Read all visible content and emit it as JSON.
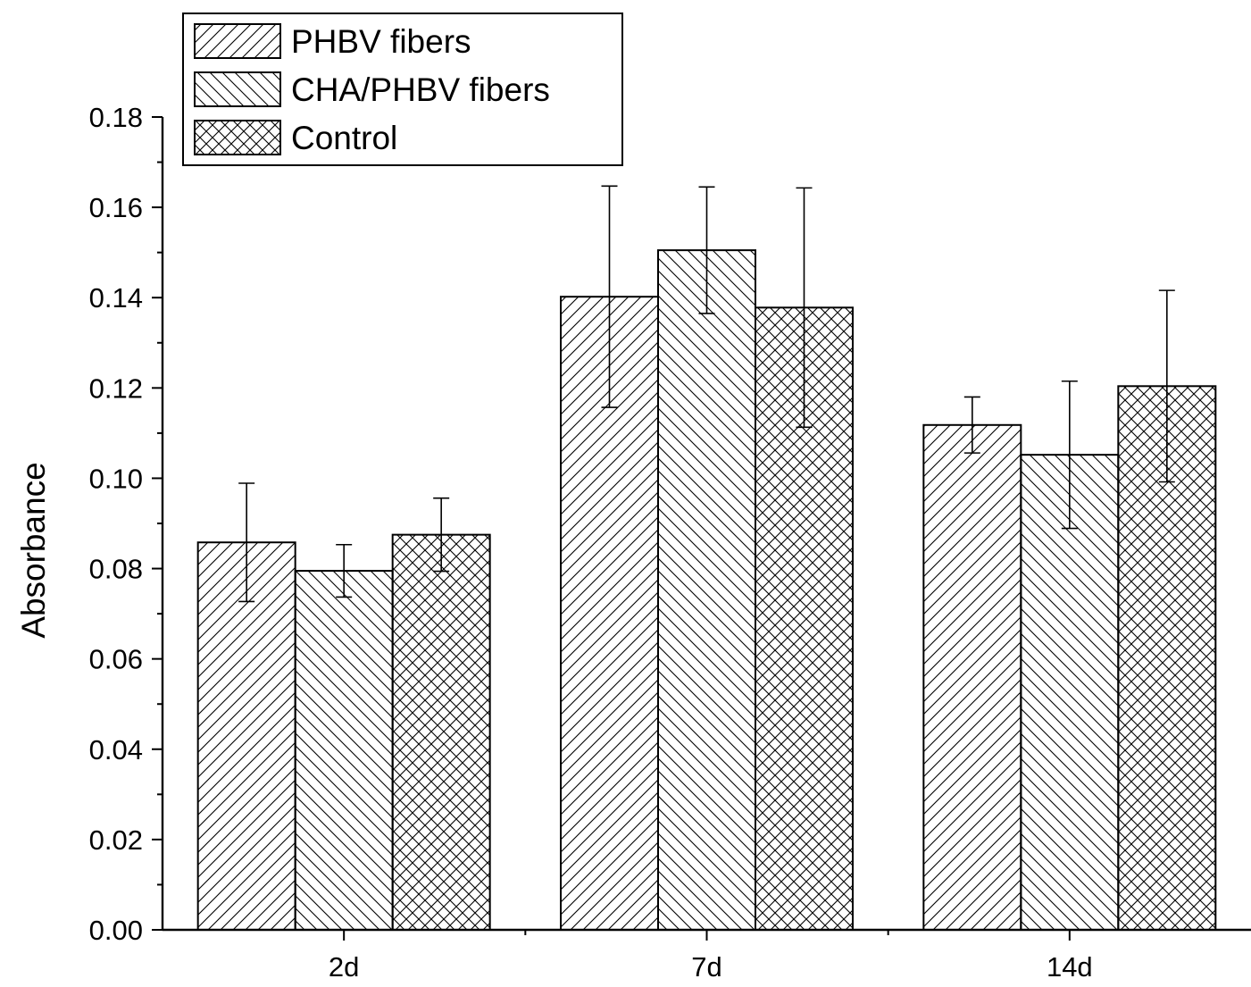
{
  "chart_data": {
    "type": "bar",
    "title": "",
    "xlabel": "",
    "ylabel": "Absorbance",
    "categories": [
      "2d",
      "7d",
      "14d"
    ],
    "ylim": [
      0,
      0.18
    ],
    "yticks": [
      "0.00",
      "0.02",
      "0.04",
      "0.06",
      "0.08",
      "0.10",
      "0.12",
      "0.14",
      "0.16",
      "0.18"
    ],
    "grid": false,
    "legend_position": "top-left",
    "series": [
      {
        "name": "PHBV fibers",
        "pattern": "forward-diagonal-hatch",
        "values": [
          0.0858,
          0.1402,
          0.1118
        ],
        "errors": [
          0.0131,
          0.0245,
          0.0062
        ]
      },
      {
        "name": "CHA/PHBV fibers",
        "pattern": "backward-diagonal-hatch",
        "values": [
          0.0795,
          0.1505,
          0.1052
        ],
        "errors": [
          0.0058,
          0.014,
          0.0163
        ]
      },
      {
        "name": "Control",
        "pattern": "cross-hatch",
        "values": [
          0.0875,
          0.1378,
          0.1204
        ],
        "errors": [
          0.0081,
          0.0265,
          0.0212
        ]
      }
    ],
    "colors": {
      "line": "#000000",
      "background": "#ffffff"
    }
  }
}
